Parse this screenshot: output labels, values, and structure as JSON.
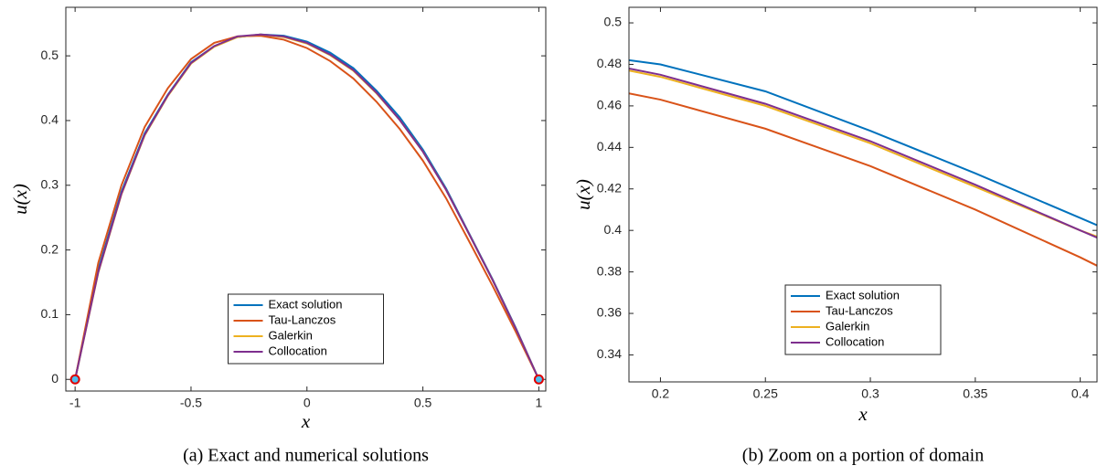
{
  "chart_data": [
    {
      "type": "line",
      "xlabel": "x",
      "ylabel": "u(x)",
      "caption": "(a) Exact and numerical solutions",
      "x": [
        -1,
        -0.9,
        -0.8,
        -0.7,
        -0.6,
        -0.5,
        -0.4,
        -0.3,
        -0.2,
        -0.1,
        0,
        0.1,
        0.2,
        0.3,
        0.4,
        0.5,
        0.6,
        0.7,
        0.8,
        0.9,
        1
      ],
      "series": [
        {
          "name": "Exact solution",
          "color": "#0072bd",
          "values": [
            0,
            0.17,
            0.29,
            0.38,
            0.44,
            0.49,
            0.515,
            0.529,
            0.533,
            0.531,
            0.522,
            0.505,
            0.481,
            0.446,
            0.405,
            0.355,
            0.295,
            0.225,
            0.155,
            0.08,
            0
          ]
        },
        {
          "name": "Tau-Lanczos",
          "color": "#d95319",
          "values": [
            0,
            0.18,
            0.3,
            0.39,
            0.45,
            0.495,
            0.52,
            0.53,
            0.531,
            0.525,
            0.512,
            0.492,
            0.465,
            0.429,
            0.387,
            0.338,
            0.28,
            0.213,
            0.145,
            0.074,
            0
          ]
        },
        {
          "name": "Galerkin",
          "color": "#edb120",
          "values": [
            0,
            0.165,
            0.286,
            0.377,
            0.438,
            0.488,
            0.514,
            0.529,
            0.533,
            0.529,
            0.519,
            0.501,
            0.477,
            0.442,
            0.401,
            0.352,
            0.293,
            0.224,
            0.154,
            0.079,
            0
          ]
        },
        {
          "name": "Collocation",
          "color": "#7e2f8e",
          "values": [
            0,
            0.166,
            0.287,
            0.378,
            0.439,
            0.489,
            0.515,
            0.53,
            0.533,
            0.53,
            0.52,
            0.502,
            0.478,
            0.443,
            0.401,
            0.352,
            0.293,
            0.224,
            0.154,
            0.079,
            0
          ]
        }
      ],
      "boundary_x": [
        -1,
        1
      ],
      "boundary_y": [
        0,
        0
      ],
      "xlim": [
        -1.04,
        1.03
      ],
      "ylim": [
        -0.018,
        0.575
      ],
      "xticks": [
        -1,
        -0.5,
        0,
        0.5,
        1
      ],
      "yticks": [
        0,
        0.1,
        0.2,
        0.3,
        0.4,
        0.5
      ],
      "legend": "lower center"
    },
    {
      "type": "line",
      "xlabel": "x",
      "ylabel": "u(x)",
      "caption": "(b) Zoom on a portion of domain",
      "x": [
        0.185,
        0.2,
        0.25,
        0.3,
        0.35,
        0.4,
        0.408
      ],
      "series": [
        {
          "name": "Exact solution",
          "color": "#0072bd",
          "values": [
            0.482,
            0.48,
            0.467,
            0.448,
            0.4275,
            0.406,
            0.4025
          ]
        },
        {
          "name": "Tau-Lanczos",
          "color": "#d95319",
          "values": [
            0.466,
            0.463,
            0.449,
            0.431,
            0.41,
            0.387,
            0.383
          ]
        },
        {
          "name": "Galerkin",
          "color": "#edb120",
          "values": [
            0.477,
            0.474,
            0.46,
            0.442,
            0.421,
            0.4,
            0.397
          ]
        },
        {
          "name": "Collocation",
          "color": "#7e2f8e",
          "values": [
            0.478,
            0.475,
            0.461,
            0.443,
            0.422,
            0.4,
            0.3965
          ]
        }
      ],
      "xlim": [
        0.185,
        0.408
      ],
      "ylim": [
        0.327,
        0.5075
      ],
      "xticks": [
        0.2,
        0.25,
        0.3,
        0.35,
        0.4
      ],
      "yticks": [
        0.34,
        0.36,
        0.38,
        0.4,
        0.42,
        0.44,
        0.46,
        0.48,
        0.5
      ],
      "legend": "lower center"
    }
  ]
}
